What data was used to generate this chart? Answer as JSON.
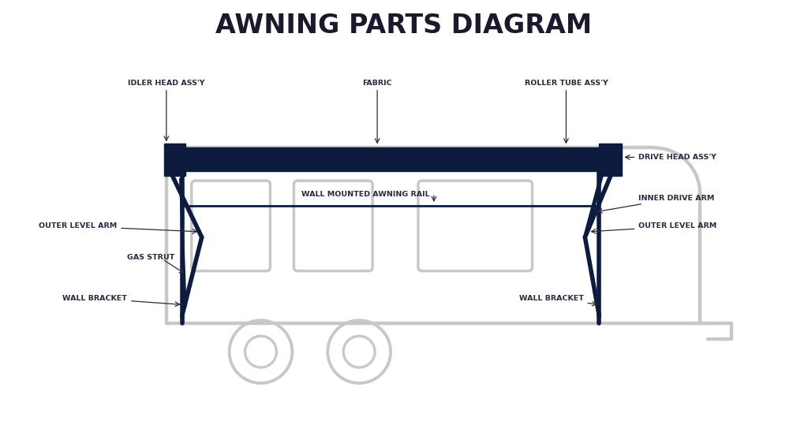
{
  "title": "AWNING PARTS DIAGRAM",
  "title_fontsize": 24,
  "title_color": "#1a1a2e",
  "title_weight": "bold",
  "background_color": "#ffffff",
  "navy": "#0d1b3e",
  "gray": "#c8c8c8",
  "label_color": "#2a2a3e",
  "label_fontsize": 6.8,
  "labels": {
    "idler_head": "IDLER HEAD ASS'Y",
    "fabric": "FABRIC",
    "roller_tube": "ROLLER TUBE ASS'Y",
    "drive_head": "DRIVE HEAD ASS'Y",
    "wall_rail": "WALL MOUNTED AWNING RAIL",
    "inner_drive_arm": "INNER DRIVE ARM",
    "outer_level_arm_left": "OUTER LEVEL ARM",
    "outer_level_arm_right": "OUTER LEVEL ARM",
    "gas_strut": "GAS STRUT",
    "wall_bracket_left": "WALL BRACKET",
    "wall_bracket_right": "WALL BRACKET"
  }
}
